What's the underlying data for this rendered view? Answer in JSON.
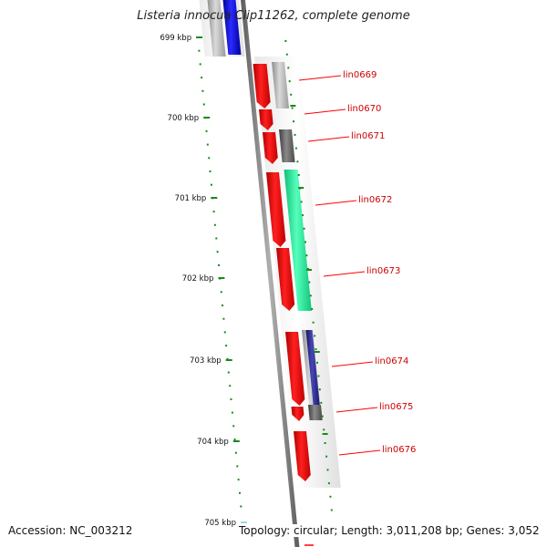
{
  "title": "Listeria innocua Clip11262, complete genome",
  "footer": {
    "accession": "Accession: NC_003212",
    "info": "Topology: circular; Length: 3,011,208 bp; Genes: 3,052"
  },
  "ticks": [
    "699 kbp",
    "700 kbp",
    "701 kbp",
    "702 kbp",
    "703 kbp",
    "704 kbp",
    "705 kbp"
  ],
  "gene_labels": [
    "lin0669",
    "lin0670",
    "lin0671",
    "lin0672",
    "lin0673",
    "lin0674",
    "lin0675",
    "lin0676"
  ],
  "colors": {
    "backbone": "#808080",
    "gene_forward": "#ff0000",
    "gene_label": "#cc0000",
    "tick_mark": "#1a8a1a",
    "cog_grey": "#b8b8b8",
    "cog_darkgrey": "#6a6a6a",
    "cog_green": "#22ee99",
    "cog_blue": "#1414d8",
    "cog_navy": "#202090"
  }
}
